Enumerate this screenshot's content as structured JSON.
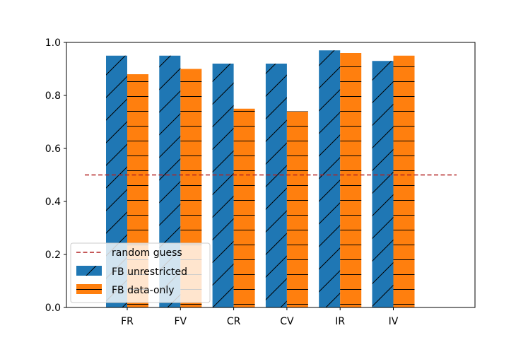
{
  "chart_data": {
    "type": "bar",
    "categories": [
      "FR",
      "FV",
      "CR",
      "CV",
      "IR",
      "IV"
    ],
    "series": [
      {
        "name": "FB unrestricted",
        "values": [
          0.95,
          0.95,
          0.92,
          0.92,
          0.97,
          0.93
        ],
        "color": "#1f77b4",
        "hatch": "diagonal"
      },
      {
        "name": "FB data-only",
        "values": [
          0.88,
          0.9,
          0.75,
          0.74,
          0.96,
          0.95
        ],
        "color": "#ff7f0e",
        "hatch": "horizontal"
      }
    ],
    "reference_line": {
      "name": "random guess",
      "value": 0.5,
      "color": "#b22222",
      "style": "dashed"
    },
    "yticks": [
      "0.0",
      "0.2",
      "0.4",
      "0.6",
      "0.8",
      "1.0"
    ],
    "ylim": [
      0,
      1.0
    ],
    "legend_position": "lower-left",
    "grid": false
  }
}
